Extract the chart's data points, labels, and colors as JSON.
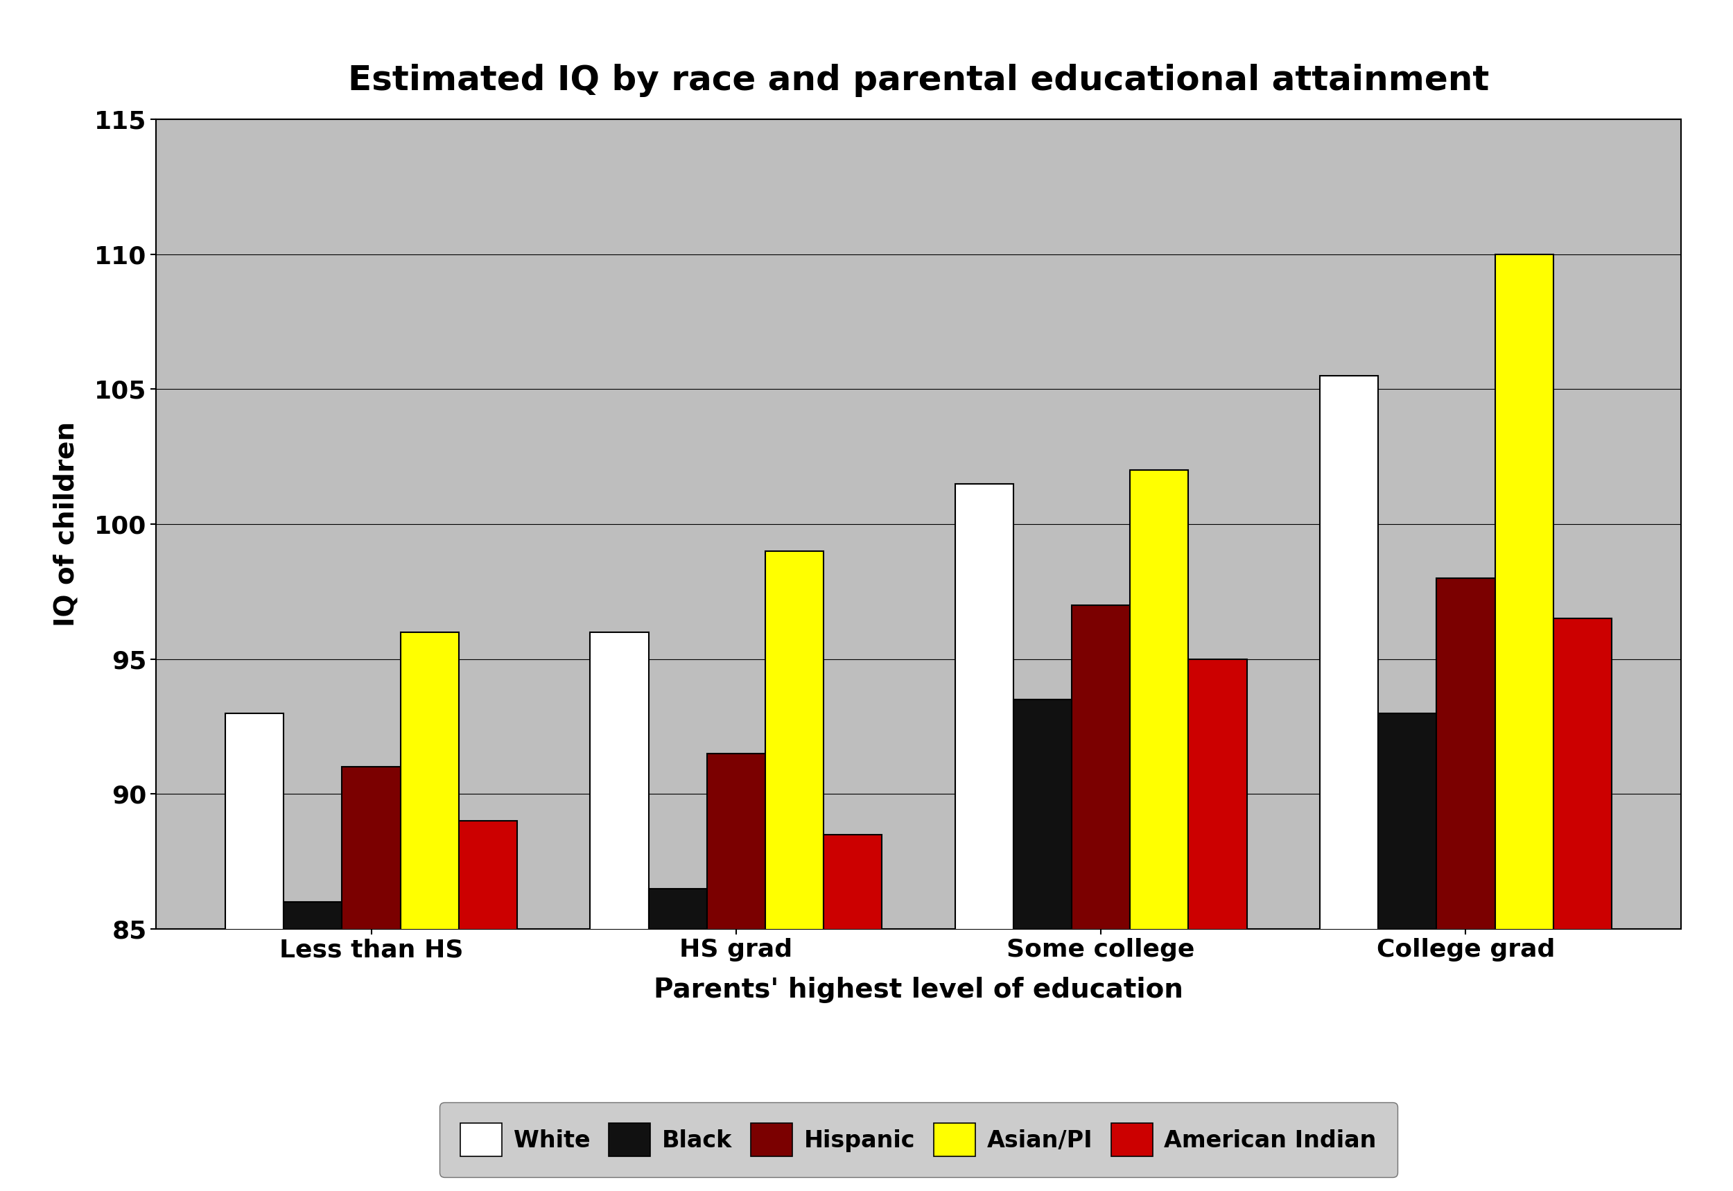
{
  "title": "Estimated IQ by race and parental educational attainment",
  "xlabel": "Parents' highest level of education",
  "ylabel": "IQ of children",
  "categories": [
    "Less than HS",
    "HS grad",
    "Some college",
    "College grad"
  ],
  "groups": [
    "White",
    "Black",
    "Hispanic",
    "Asian/PI",
    "American Indian"
  ],
  "values": {
    "White": [
      93.0,
      96.0,
      101.5,
      105.5
    ],
    "Black": [
      86.0,
      86.5,
      93.5,
      93.0
    ],
    "Hispanic": [
      91.0,
      91.5,
      97.0,
      98.0
    ],
    "Asian/PI": [
      96.0,
      99.0,
      102.0,
      110.0
    ],
    "American Indian": [
      89.0,
      88.5,
      95.0,
      96.5
    ]
  },
  "bar_colors": {
    "White": "#FFFFFF",
    "Black": "#111111",
    "Hispanic": "#7B0000",
    "Asian/PI": "#FFFF00",
    "American Indian": "#CC0000"
  },
  "bar_edgecolor": "#000000",
  "ylim": [
    85,
    115
  ],
  "yticks": [
    85,
    90,
    95,
    100,
    105,
    110,
    115
  ],
  "plot_bg_color": "#BEBEBE",
  "fig_bg_color": "#FFFFFF",
  "title_fontsize": 36,
  "axis_label_fontsize": 28,
  "tick_fontsize": 26,
  "legend_fontsize": 24,
  "bar_width": 0.16,
  "legend_bg_color": "#C0C0C0"
}
